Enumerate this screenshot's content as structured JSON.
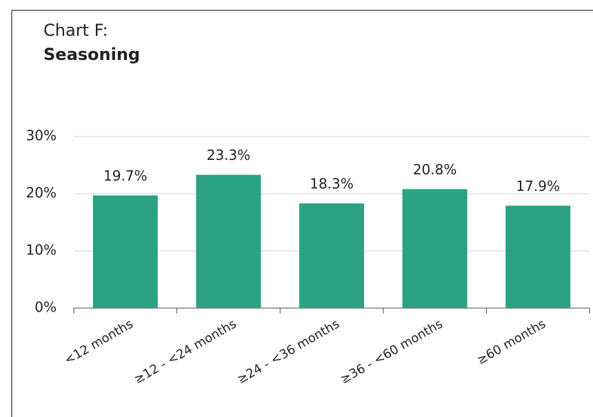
{
  "chart_data": {
    "type": "bar",
    "title": "Chart F:",
    "subtitle": "Seasoning",
    "categories": [
      "<12 months",
      "≥12 - <24 months",
      "≥24 - <36 months",
      "≥36 - <60 months",
      "≥60 months"
    ],
    "values": [
      19.7,
      23.3,
      18.3,
      20.8,
      17.9
    ],
    "value_labels": [
      "19.7%",
      "23.3%",
      "18.3%",
      "20.8%",
      "17.9%"
    ],
    "color": "#2aa283",
    "ylim": [
      0,
      30
    ],
    "yticks": [
      {
        "value": 0,
        "label": "0%"
      },
      {
        "value": 10,
        "label": "10%"
      },
      {
        "value": 20,
        "label": "20%"
      },
      {
        "value": 30,
        "label": "30%"
      }
    ],
    "grid": true
  }
}
